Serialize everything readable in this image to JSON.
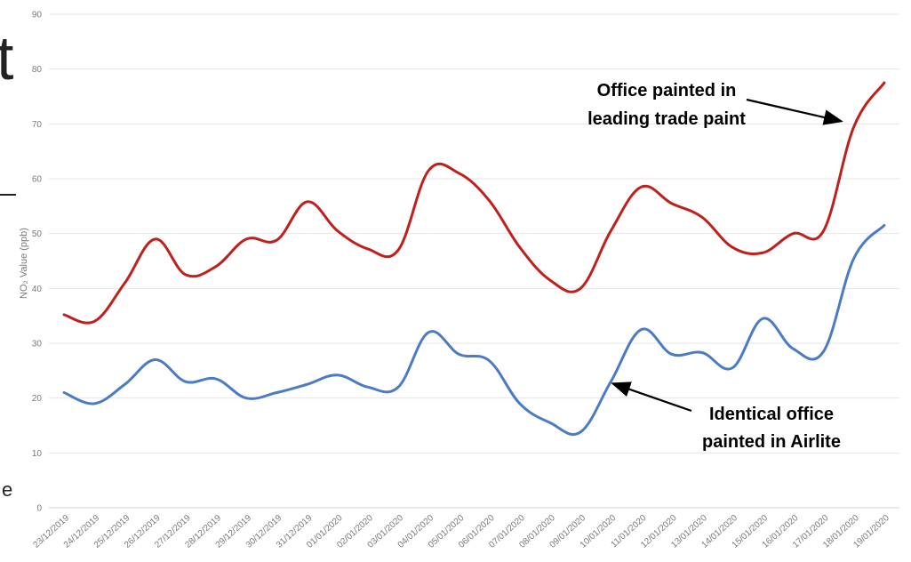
{
  "chart_data": {
    "type": "line",
    "ylabel": "NO₂ Value (ppb)",
    "ylim": [
      0,
      90
    ],
    "yticks": [
      0,
      10,
      20,
      30,
      40,
      50,
      60,
      70,
      80,
      90
    ],
    "grid": true,
    "categories": [
      "23/12/2019",
      "24/12/2019",
      "25/12/2019",
      "26/12/2019",
      "27/12/2019",
      "28/12/2019",
      "29/12/2019",
      "30/12/2019",
      "31/12/2019",
      "01/01/2020",
      "02/01/2020",
      "03/01/2020",
      "04/01/2020",
      "05/01/2020",
      "06/01/2020",
      "07/01/2020",
      "08/01/2020",
      "09/01/2020",
      "10/01/2020",
      "11/01/2020",
      "12/01/2020",
      "13/01/2020",
      "14/01/2020",
      "15/01/2020",
      "16/01/2020",
      "17/01/2020",
      "18/01/2020",
      "19/01/2020"
    ],
    "series": [
      {
        "color": "#c0201c",
        "values": [
          35.2,
          34.0,
          41.0,
          49.0,
          42.5,
          44.0,
          49.0,
          48.8,
          55.8,
          50.5,
          47.2,
          47.0,
          61.5,
          61.0,
          56.0,
          47.5,
          41.5,
          40.0,
          50.5,
          58.5,
          55.5,
          53.0,
          47.5,
          46.5,
          50.0,
          50.5,
          69.5,
          77.5
        ]
      },
      {
        "color": "#4a7bc4",
        "values": [
          21.0,
          19.0,
          22.5,
          27.0,
          23.0,
          23.5,
          20.0,
          21.0,
          22.5,
          24.2,
          22.0,
          22.0,
          32.0,
          28.0,
          26.8,
          19.0,
          15.5,
          13.8,
          23.0,
          32.5,
          28.0,
          28.3,
          25.5,
          34.5,
          29.0,
          28.5,
          45.5,
          51.5
        ]
      }
    ],
    "annotations": [
      {
        "lines": [
          "Office painted in",
          "leading trade paint"
        ],
        "target_series": 0,
        "target_category": "18/01/2020"
      },
      {
        "lines": [
          "Identical office",
          "painted in Airlite"
        ],
        "target_series": 1,
        "target_category": "10/01/2020"
      }
    ]
  },
  "edge_text": {
    "top_char": "t",
    "bottom_char": "e"
  }
}
